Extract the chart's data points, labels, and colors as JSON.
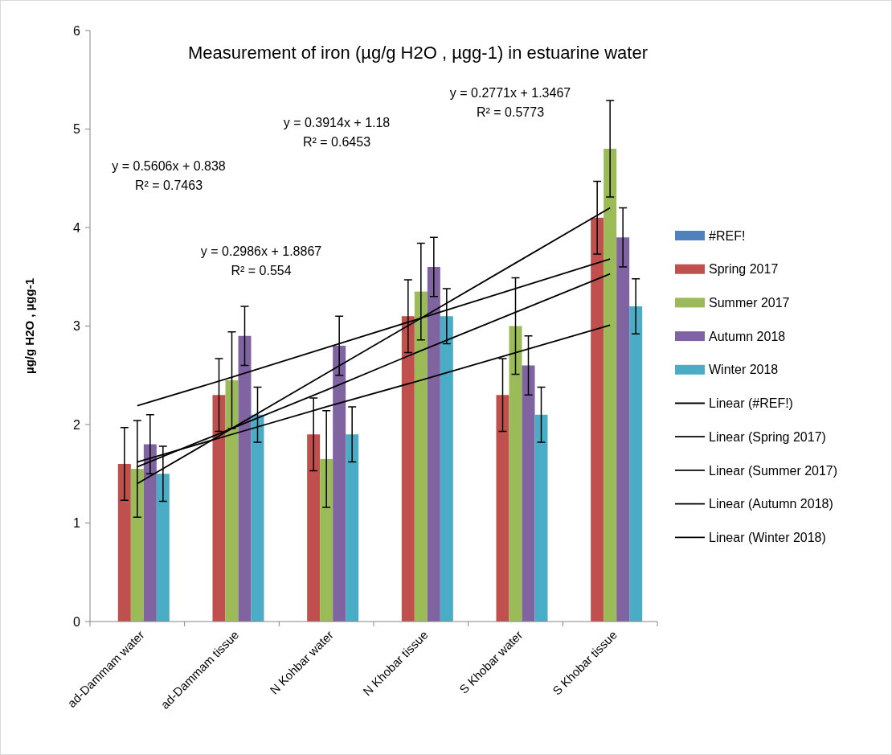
{
  "chart_data": {
    "type": "bar",
    "title": "Measurement of iron (µg/g H2O , µgg-1) in estuarine water",
    "ylabel": "µg/g H2O , µgg-1",
    "categories": [
      "ad-Dammam water",
      "ad-Dammam tissue",
      "N Kohbar water",
      "N Khobar tissue",
      "S Khobar water",
      "S Khobar tissue"
    ],
    "ylim": [
      0,
      6
    ],
    "yticks": [
      0,
      1,
      2,
      3,
      4,
      5,
      6
    ],
    "legend": "right",
    "series": [
      {
        "name": "#REF!",
        "color": "#4f81bd",
        "values": [
          null,
          null,
          null,
          null,
          null,
          null
        ]
      },
      {
        "name": "Spring 2017",
        "color": "#c0504d",
        "values": [
          1.6,
          2.3,
          1.9,
          3.1,
          2.3,
          4.1
        ],
        "errors": [
          0.37,
          0.37,
          0.37,
          0.37,
          0.37,
          0.37
        ]
      },
      {
        "name": "Summer 2017",
        "color": "#9bbb59",
        "values": [
          1.55,
          2.45,
          1.65,
          3.35,
          3.0,
          4.8
        ],
        "errors": [
          0.49,
          0.49,
          0.49,
          0.49,
          0.49,
          0.49
        ]
      },
      {
        "name": "Autumn 2018",
        "color": "#8064a2",
        "values": [
          1.8,
          2.9,
          2.8,
          3.6,
          2.6,
          3.9
        ],
        "errors": [
          0.3,
          0.3,
          0.3,
          0.3,
          0.3,
          0.3
        ]
      },
      {
        "name": "Winter 2018",
        "color": "#4bacc6",
        "values": [
          1.5,
          2.1,
          1.9,
          3.1,
          2.1,
          3.2
        ],
        "errors": [
          0.28,
          0.28,
          0.28,
          0.28,
          0.28,
          0.28
        ]
      },
      {
        "name": "Linear (#REF!)",
        "type": "line",
        "color": "#000000",
        "values": [
          null,
          null,
          null,
          null,
          null,
          null
        ]
      },
      {
        "name": "Linear (Spring 2017)",
        "type": "line",
        "color": "#000000",
        "values": [
          1.57,
          1.96,
          2.35,
          2.75,
          3.14,
          3.53
        ]
      },
      {
        "name": "Linear (Summer 2017)",
        "type": "line",
        "color": "#000000",
        "values": [
          1.4,
          1.96,
          2.52,
          3.08,
          3.64,
          4.2
        ]
      },
      {
        "name": "Linear (Autumn 2018)",
        "type": "line",
        "color": "#000000",
        "values": [
          2.19,
          2.48,
          2.78,
          3.08,
          3.38,
          3.68
        ]
      },
      {
        "name": "Linear (Winter 2018)",
        "type": "line",
        "color": "#000000",
        "values": [
          1.62,
          1.9,
          2.18,
          2.45,
          2.73,
          3.01
        ]
      }
    ],
    "annotations": [
      "y = 0.5606x + 0.838",
      "R² = 0.7463",
      "y = 0.3914x + 1.18",
      "R² = 0.6453",
      "y = 0.2986x + 1.8867",
      "R² = 0.554",
      "y = 0.2771x + 1.3467",
      "R² = 0.5773"
    ]
  }
}
